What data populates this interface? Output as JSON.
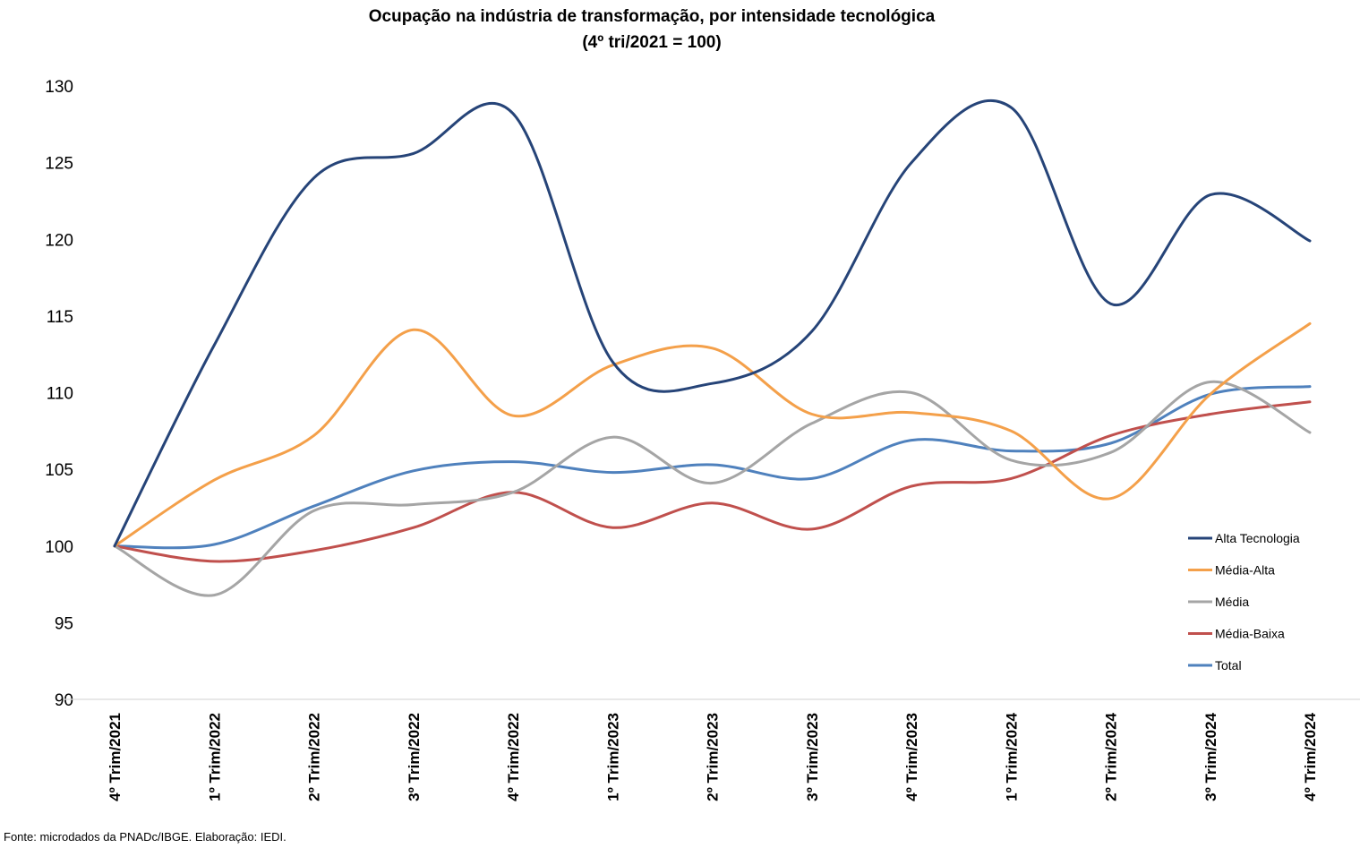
{
  "chart_data": {
    "type": "line",
    "title": "Ocupação na indústria de transformação, por intensidade tecnológica",
    "subtitle": "(4º tri/2021 = 100)",
    "categories": [
      "4º Trim/2021",
      "1º Trim/2022",
      "2º Trim/2022",
      "3º Trim/2022",
      "4º Trim/2022",
      "1º Trim/2023",
      "2º Trim/2023",
      "3º Trim/2023",
      "4º Trim/2023",
      "1º Trim/2024",
      "2º Trim/2024",
      "3º Trim/2024",
      "4º Trim/2024"
    ],
    "ylim": [
      90,
      130
    ],
    "yticks": [
      90,
      95,
      100,
      105,
      110,
      115,
      120,
      125,
      130
    ],
    "smooth": true,
    "grid": false,
    "legend_position": "right",
    "series": [
      {
        "name": "Alta Tecnologia",
        "color": "#264478",
        "values": [
          100,
          113.1,
          124.0,
          125.6,
          128.2,
          112.0,
          110.6,
          114.0,
          125.0,
          128.6,
          115.8,
          122.9,
          119.9
        ]
      },
      {
        "name": "Média-Alta",
        "color": "#F4A04A",
        "values": [
          100,
          104.3,
          107.2,
          114.1,
          108.5,
          111.8,
          112.9,
          108.6,
          108.7,
          107.5,
          103.1,
          109.9,
          114.5
        ]
      },
      {
        "name": "Média",
        "color": "#A5A5A5",
        "values": [
          100,
          96.8,
          102.3,
          102.7,
          103.5,
          107.1,
          104.1,
          108.0,
          110.0,
          105.6,
          106.1,
          110.7,
          107.4
        ]
      },
      {
        "name": "Média-Baixa",
        "color": "#C0504D",
        "values": [
          100,
          99.0,
          99.7,
          101.2,
          103.5,
          101.2,
          102.8,
          101.1,
          103.9,
          104.4,
          107.2,
          108.6,
          109.4
        ]
      },
      {
        "name": "Total",
        "color": "#4F81BD",
        "values": [
          100,
          100.1,
          102.6,
          104.9,
          105.5,
          104.8,
          105.3,
          104.4,
          106.9,
          106.2,
          106.7,
          109.9,
          110.4
        ]
      }
    ]
  },
  "source_note": "Fonte: microdados da PNADc/IBGE. Elaboração: IEDI."
}
